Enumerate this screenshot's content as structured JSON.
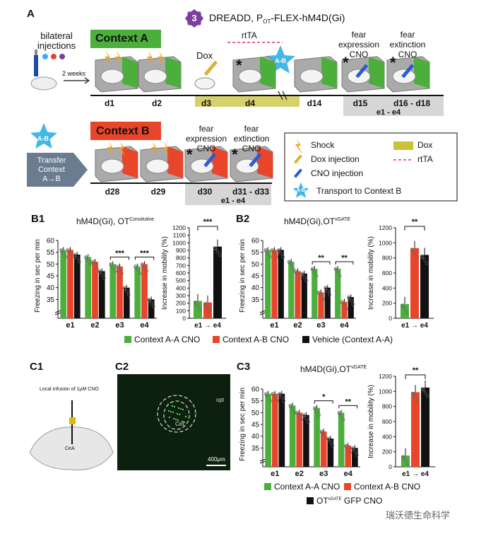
{
  "panelA": {
    "label": "A",
    "step_number": "3",
    "dreadd_title": "DREADD, P",
    "dreadd_sub": "OT",
    "dreadd_rest": "-FLEX-hM4D(Gi)",
    "bilateral": [
      "bilateral",
      "injections"
    ],
    "two_weeks": "2 weeks",
    "context_a": "Context A",
    "dox": "Dox",
    "rttA": "rtTA",
    "ab_star": "A-B",
    "fear_expression": [
      "fear",
      "expression",
      "CNO"
    ],
    "fear_extinction": [
      "fear",
      "extinction",
      "CNO"
    ],
    "days": [
      "d1",
      "d2",
      "d3",
      "d4",
      "d14",
      "d15",
      "d16 - d18"
    ],
    "e_range": "e1 - e4",
    "asterisk": "*"
  },
  "panelA2": {
    "star_label": "A-B",
    "transfer": [
      "Transfer",
      "Context",
      "A→B"
    ],
    "context_b": "Context B",
    "fear_expression": [
      "fear",
      "expression",
      "CNO"
    ],
    "fear_extinction": [
      "fear",
      "extinction",
      "CNO"
    ],
    "days": [
      "d28",
      "d29",
      "d30",
      "d31 - d33"
    ],
    "e_range": "e1 - e4",
    "legend": {
      "shock": "Shock",
      "dox_injection": "Dox injection",
      "cno_injection": "CNO injection",
      "transport": "Transport to Context B",
      "dox": "Dox",
      "rtta": "rtTA",
      "star": "A-B"
    }
  },
  "colors": {
    "green": "#4caf3c",
    "red": "#e8452a",
    "black": "#111111",
    "blue_star": "#43b8e6",
    "dox_gold": "#c9c23a",
    "gray_box": "#d6d6d6",
    "rtta": "#e0307a",
    "purple": "#7b3fa0",
    "tissue_bg": "#0d200d"
  },
  "panelB": {
    "labels": {
      "b1": "B1",
      "b2": "B2"
    },
    "b1_title": "hM4D(Gi), OT",
    "b1_title_sup": "Consitutive",
    "b2_title": "hM4D(Gi),OT",
    "b2_title_sup": "vGATE",
    "legend": [
      "Context A-A CNO",
      "Context A-B CNO",
      "Vehicle (Context A-A)"
    ]
  },
  "panelC": {
    "labels": {
      "c1": "C1",
      "c2": "C2",
      "c3": "C3"
    },
    "c1_text": "Local infusion of 1μM CNO",
    "c1_cea": "CeA",
    "c2_opt": "opt",
    "c2_cel": "CeL",
    "c2_scale": "400μm",
    "c3_title": "hM4D(Gi),OT",
    "c3_title_sup": "vGATE",
    "legend": [
      "Context A-A CNO",
      "Context A-B CNO",
      "OT",
      "vGATE",
      " GFP CNO"
    ],
    "watermark": "瑞沃德生命科学"
  },
  "chart_data": [
    {
      "type": "bar",
      "id": "B1-freezing",
      "categories": [
        "e1",
        "e2",
        "e3",
        "e4"
      ],
      "ylabel": "Freezing in sec per min",
      "ylim": [
        30,
        60
      ],
      "yticks": [
        35,
        40,
        45,
        50,
        55,
        60
      ],
      "series": [
        {
          "name": "Context A-A CNO",
          "values": [
            56,
            53,
            50,
            49
          ]
        },
        {
          "name": "Context A-B CNO",
          "values": [
            56,
            51,
            49,
            50
          ]
        },
        {
          "name": "Vehicle (Context A-A)",
          "values": [
            54,
            47,
            40,
            35
          ]
        }
      ],
      "significance": [
        {
          "category": "e3",
          "text": "***"
        },
        {
          "category": "e4",
          "text": "***"
        }
      ]
    },
    {
      "type": "bar",
      "id": "B1-mobility",
      "categories": [
        "e1 → e4"
      ],
      "ylabel": "Increase in mobility (%)",
      "ylim": [
        0,
        1200
      ],
      "yticks": [
        0,
        100,
        200,
        300,
        400,
        500,
        600,
        700,
        800,
        900,
        1000,
        1100,
        1200
      ],
      "series": [
        {
          "name": "Context A-A CNO",
          "values": [
            230
          ]
        },
        {
          "name": "Context A-B CNO",
          "values": [
            210
          ]
        },
        {
          "name": "Vehicle (Context A-A)",
          "values": [
            950
          ]
        }
      ],
      "significance": [
        {
          "text": "***"
        }
      ]
    },
    {
      "type": "bar",
      "id": "B2-freezing",
      "categories": [
        "e1",
        "e2",
        "e3",
        "e4"
      ],
      "ylabel": "Freezing in sec per min",
      "ylim": [
        30,
        60
      ],
      "yticks": [
        35,
        40,
        45,
        50,
        55,
        60
      ],
      "series": [
        {
          "name": "Context A-A CNO",
          "values": [
            56,
            51,
            48,
            48
          ]
        },
        {
          "name": "Context A-B CNO",
          "values": [
            56,
            47,
            38,
            34
          ]
        },
        {
          "name": "Vehicle (Context A-A)",
          "values": [
            56,
            46,
            40,
            36
          ]
        }
      ],
      "significance": [
        {
          "category": "e3",
          "text": "**"
        },
        {
          "category": "e4",
          "text": "**"
        }
      ]
    },
    {
      "type": "bar",
      "id": "B2-mobility",
      "categories": [
        "e1 → e4"
      ],
      "ylabel": "Increase in mobility (%)",
      "ylim": [
        0,
        1200
      ],
      "yticks": [
        0,
        200,
        400,
        600,
        800,
        1000,
        1200
      ],
      "series": [
        {
          "name": "Context A-A CNO",
          "values": [
            190
          ]
        },
        {
          "name": "Context A-B CNO",
          "values": [
            930
          ]
        },
        {
          "name": "Vehicle (Context A-A)",
          "values": [
            840
          ]
        }
      ],
      "significance": [
        {
          "text": "**"
        }
      ]
    },
    {
      "type": "bar",
      "id": "C3-freezing",
      "categories": [
        "e1",
        "e2",
        "e3",
        "e4"
      ],
      "ylabel": "Freezing in sec per min",
      "ylim": [
        30,
        60
      ],
      "yticks": [
        35,
        40,
        45,
        50,
        55,
        60
      ],
      "series": [
        {
          "name": "Context A-A CNO",
          "values": [
            58,
            53,
            52,
            50
          ]
        },
        {
          "name": "Context A-B CNO",
          "values": [
            58,
            50,
            42,
            36
          ]
        },
        {
          "name": "OT vGATE GFP CNO",
          "values": [
            58,
            49,
            39,
            35
          ]
        }
      ],
      "significance": [
        {
          "category": "e3",
          "text": "*"
        },
        {
          "category": "e4",
          "text": "**"
        }
      ]
    },
    {
      "type": "bar",
      "id": "C3-mobility",
      "categories": [
        "e1 → e4"
      ],
      "ylabel": "Increase in mobility (%)",
      "ylim": [
        0,
        1200
      ],
      "yticks": [
        0,
        200,
        400,
        600,
        800,
        1000,
        1200
      ],
      "series": [
        {
          "name": "Context A-A CNO",
          "values": [
            150
          ]
        },
        {
          "name": "Context A-B CNO",
          "values": [
            990
          ]
        },
        {
          "name": "OT vGATE GFP CNO",
          "values": [
            1050
          ]
        }
      ],
      "significance": [
        {
          "text": "**"
        }
      ]
    }
  ]
}
